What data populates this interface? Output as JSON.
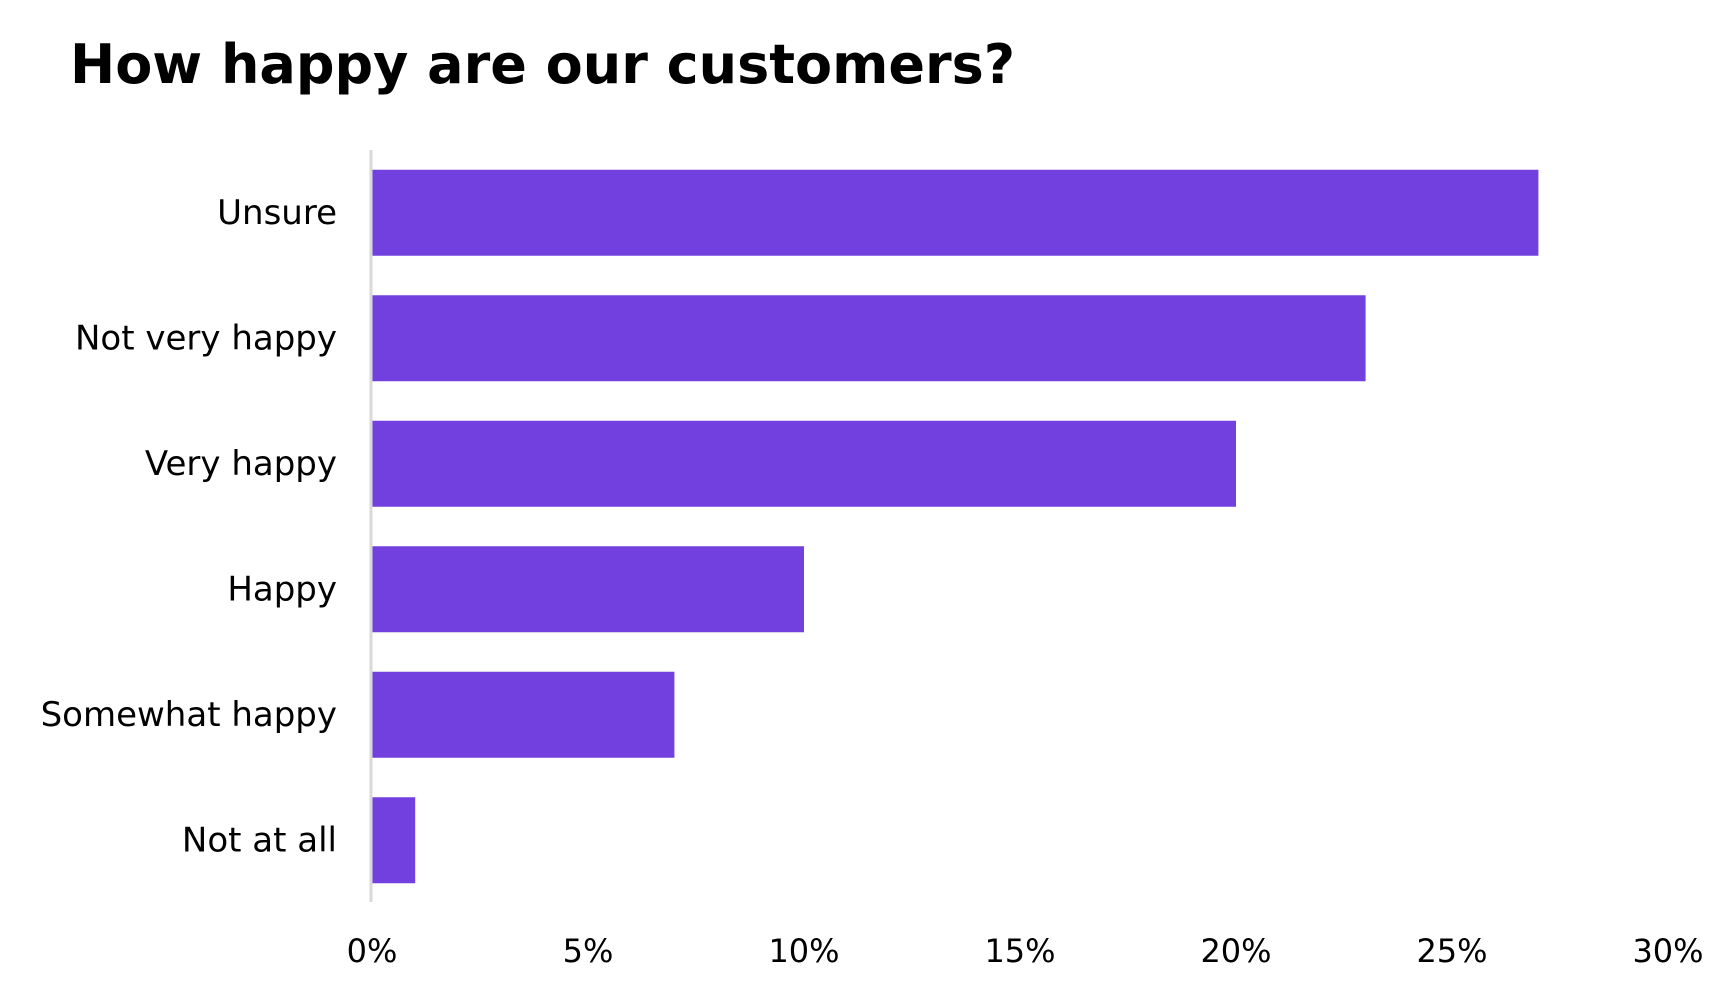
{
  "chart_data": {
    "type": "bar",
    "orientation": "horizontal",
    "title": "How happy are our customers?",
    "categories": [
      "Unsure",
      "Not very happy",
      "Very happy",
      "Happy",
      "Somewhat happy",
      "Not at all"
    ],
    "values": [
      27,
      23,
      20,
      10,
      7,
      1
    ],
    "value_unit": "%",
    "xlim": [
      0,
      30
    ],
    "x_ticks": [
      "0%",
      "5%",
      "10%",
      "15%",
      "20%",
      "25%",
      "30%"
    ],
    "x_tick_values": [
      0,
      5,
      10,
      15,
      20,
      25,
      30
    ],
    "xlabel": "",
    "ylabel": "",
    "grid": false,
    "legend": "none",
    "bar_color": "#7140DE",
    "axis_color": "#D9D9D9"
  }
}
